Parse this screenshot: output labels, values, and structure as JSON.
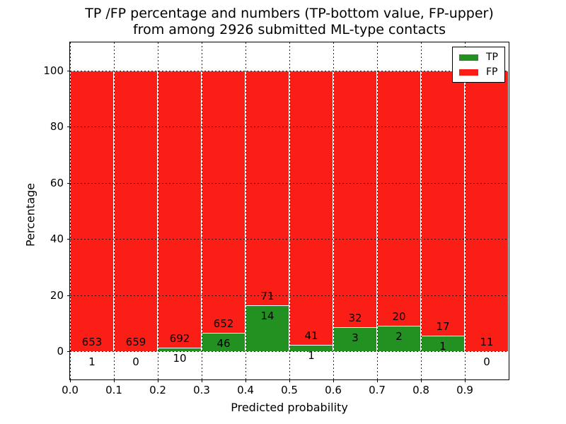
{
  "chart_data": {
    "type": "bar",
    "stacked": true,
    "orientation": "vertical",
    "title_lines": [
      "TP /FP percentage and numbers (TP-bottom value, FP-upper)",
      "from among 2926 submitted ML-type contacts"
    ],
    "xlabel": "Predicted probability",
    "ylabel": "Percentage",
    "total_contacts": 2926,
    "categories": [
      "0.0-0.1",
      "0.1-0.2",
      "0.2-0.3",
      "0.3-0.4",
      "0.4-0.5",
      "0.5-0.6",
      "0.6-0.7",
      "0.7-0.8",
      "0.8-0.9",
      "0.9-1.0"
    ],
    "series": [
      {
        "name": "TP",
        "color": "#229122",
        "counts": [
          1,
          0,
          10,
          46,
          14,
          1,
          3,
          2,
          1,
          0
        ]
      },
      {
        "name": "FP",
        "color": "#fb1e17",
        "counts": [
          653,
          659,
          692,
          652,
          71,
          41,
          32,
          20,
          17,
          11
        ]
      }
    ],
    "bar_heights_note": "each bin normalized to 100%; green TP segment height = TP/(TP+FP)*100",
    "xlim": [
      0.0,
      1.0
    ],
    "ylim": [
      -10,
      110
    ],
    "xticks": [
      0.0,
      0.1,
      0.2,
      0.3,
      0.4,
      0.5,
      0.6,
      0.7,
      0.8,
      0.9
    ],
    "yticks": [
      0,
      20,
      40,
      60,
      80,
      100
    ],
    "grid": true,
    "grid_style": "dotted",
    "legend": {
      "position": "upper right",
      "entries": [
        {
          "label": "TP",
          "color": "#229122"
        },
        {
          "label": "FP",
          "color": "#fb1e17"
        }
      ]
    }
  }
}
